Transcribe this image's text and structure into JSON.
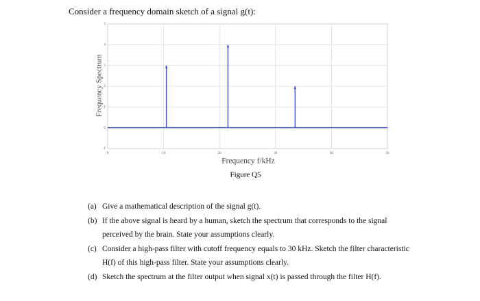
{
  "intro": "Consider a frequency domain sketch of a signal g(t):",
  "chart_data": {
    "type": "stem",
    "xlabel": "Frequency f/kHz",
    "ylabel": "Frequency Spectrum",
    "caption": "Figure Q5",
    "x": [
      10.5,
      21.5,
      33.5
    ],
    "values": [
      3,
      4,
      2
    ],
    "color": "#4a5bc0",
    "xlim": [
      0,
      50
    ],
    "ylim": [
      -1,
      5
    ],
    "xticks": [
      0,
      10,
      20,
      30,
      40,
      50
    ],
    "yticks": [
      -1,
      0,
      1,
      2,
      3,
      4,
      5
    ],
    "grid": true
  },
  "questions": [
    {
      "label": "(a)",
      "text": "Give a mathematical description of the signal g(t)."
    },
    {
      "label": "(b)",
      "text": "If the above signal is heard by a human, sketch the spectrum that corresponds to the signal perceived by the brain. State your assumptions clearly."
    },
    {
      "label": "(c)",
      "text": "Consider a high-pass filter with cutoff frequency equals to 30 kHz. Sketch the filter characteristic H(f) of this high-pass filter. State your assumptions clearly."
    },
    {
      "label": "(d)",
      "text": "Sketch the spectrum at the filter output when signal x(t) is passed through the filter H(f)."
    }
  ]
}
